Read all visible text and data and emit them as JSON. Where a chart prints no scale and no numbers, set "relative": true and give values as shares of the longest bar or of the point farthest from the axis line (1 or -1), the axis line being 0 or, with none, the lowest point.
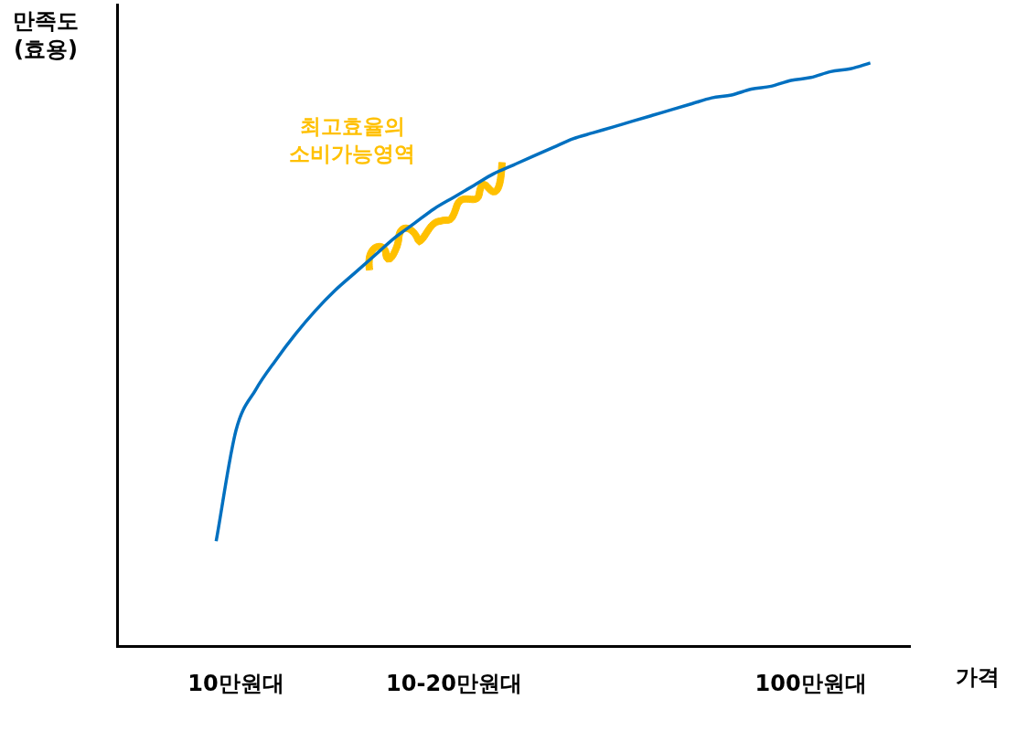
{
  "chart_data": {
    "type": "line",
    "relative": true,
    "xlabel": "가격",
    "ylabel": "만족도\n(효용)",
    "annotations": [
      "최고효율의\n소비가능영역"
    ],
    "categories": [
      null,
      null,
      null,
      null,
      null,
      null,
      "10만원대",
      null,
      null,
      null,
      null,
      null,
      null,
      null,
      null,
      null,
      null,
      "10-20만원대",
      null,
      null,
      null,
      null,
      null,
      null,
      null,
      null,
      null,
      null,
      null,
      null,
      null,
      null,
      null,
      null,
      null,
      "100만원대",
      null,
      null,
      null,
      null,
      null
    ],
    "series": [
      {
        "color": "#0070c0",
        "values": [
          null,
          null,
          null,
          null,
          null,
          0.18,
          0.37,
          0.44,
          0.49,
          0.535,
          0.575,
          0.61,
          0.64,
          0.67,
          0.7,
          0.725,
          0.75,
          0.77,
          0.79,
          0.81,
          0.825,
          0.84,
          0.855,
          0.87,
          0.88,
          0.89,
          0.9,
          0.91,
          0.92,
          0.93,
          0.94,
          0.945,
          0.955,
          0.96,
          0.97,
          0.975,
          0.985,
          0.99,
          1,
          null,
          null
        ]
      }
    ],
    "grid": false,
    "legend": false,
    "marker": "none",
    "line_style": "solid"
  }
}
